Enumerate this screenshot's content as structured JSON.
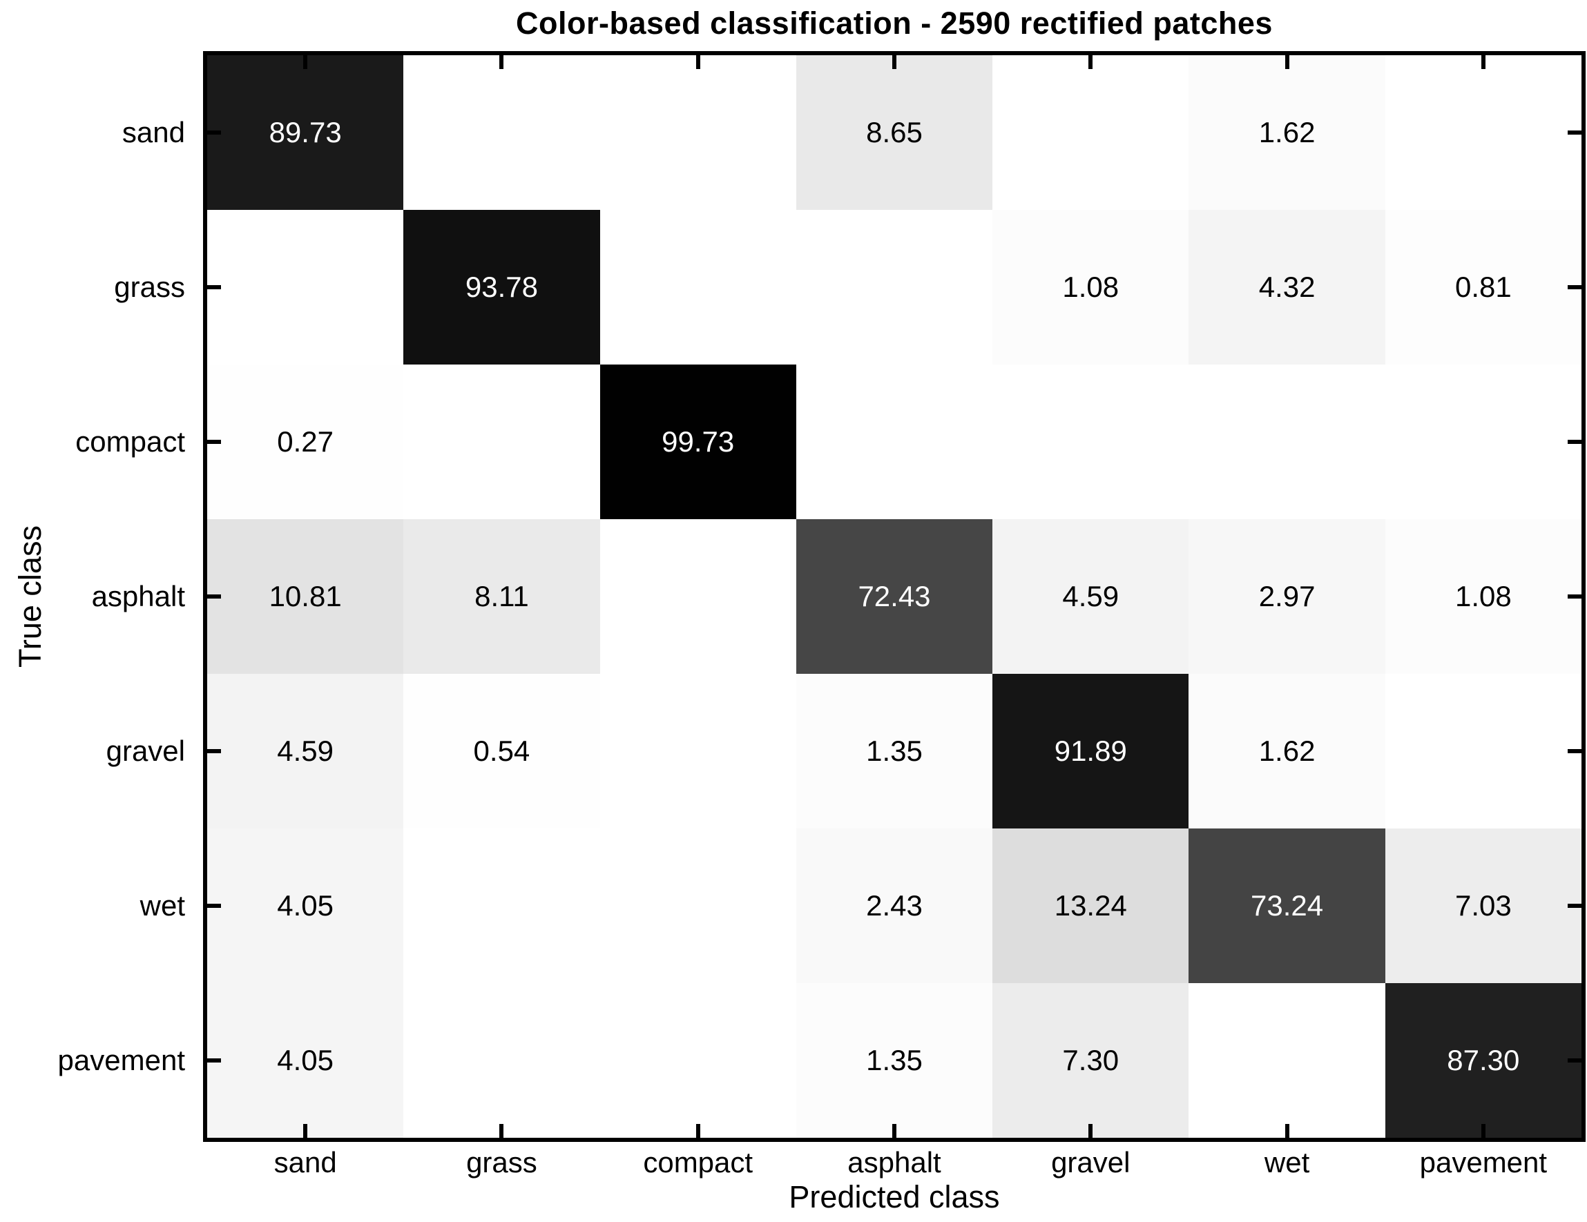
{
  "chart_data": {
    "type": "heatmap",
    "title": "Color-based classification - 2590 rectified patches",
    "xlabel": "Predicted class",
    "ylabel": "True class",
    "x_categories": [
      "sand",
      "grass",
      "compact",
      "asphalt",
      "gravel",
      "wet",
      "pavement"
    ],
    "y_categories": [
      "sand",
      "grass",
      "compact",
      "asphalt",
      "gravel",
      "wet",
      "pavement"
    ],
    "values_percent": [
      [
        89.73,
        0,
        0,
        8.65,
        0,
        1.62,
        0
      ],
      [
        0,
        93.78,
        0,
        0,
        1.08,
        4.32,
        0.81
      ],
      [
        0.27,
        0,
        99.73,
        0,
        0,
        0,
        0
      ],
      [
        10.81,
        8.11,
        0,
        72.43,
        4.59,
        2.97,
        1.08
      ],
      [
        4.59,
        0.54,
        0,
        1.35,
        91.89,
        1.62,
        0
      ],
      [
        4.05,
        0,
        0,
        2.43,
        13.24,
        73.24,
        7.03
      ],
      [
        4.05,
        0,
        0,
        1.35,
        7.3,
        0,
        87.3
      ]
    ],
    "value_format": "two decimals, zero cells left blank",
    "colormap": {
      "style": "linear gray inverted",
      "zero_color": "#ffffff",
      "full_color": "#000000"
    },
    "text_on_dark": "#ffffff",
    "text_on_light": "#000000",
    "axis_color": "#000000",
    "background_color": "#ffffff",
    "grid": "off",
    "legend": "none",
    "axis_ranges": {
      "x": "7 categorical columns",
      "y": "7 categorical rows",
      "values": [
        0,
        100
      ]
    }
  }
}
